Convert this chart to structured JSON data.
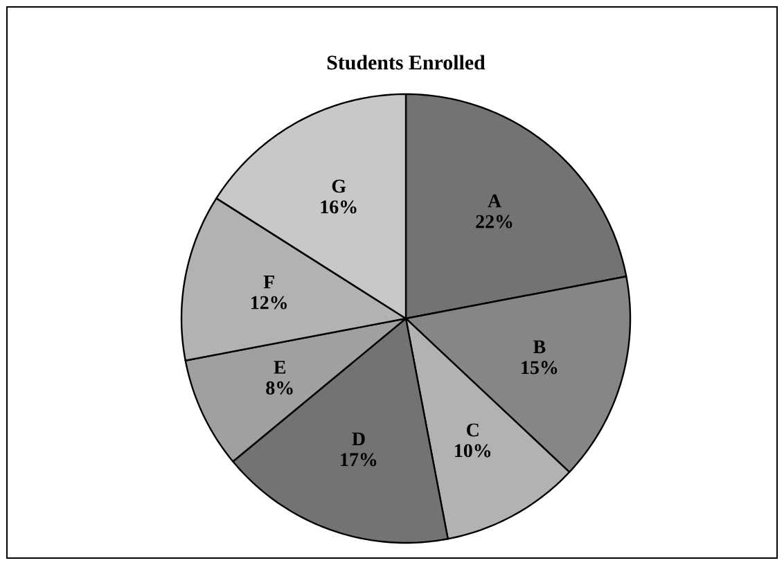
{
  "chart_data": {
    "type": "pie",
    "title": "Students Enrolled",
    "categories": [
      "A",
      "B",
      "C",
      "D",
      "E",
      "F",
      "G"
    ],
    "values": [
      22,
      15,
      10,
      17,
      8,
      12,
      16
    ],
    "value_labels": [
      "22%",
      "15%",
      "10%",
      "17%",
      "8%",
      "12%",
      "16%"
    ],
    "colors": [
      "#737373",
      "#868686",
      "#b2b2b2",
      "#737373",
      "#a0a0a0",
      "#b2b2b2",
      "#c8c8c8"
    ]
  }
}
